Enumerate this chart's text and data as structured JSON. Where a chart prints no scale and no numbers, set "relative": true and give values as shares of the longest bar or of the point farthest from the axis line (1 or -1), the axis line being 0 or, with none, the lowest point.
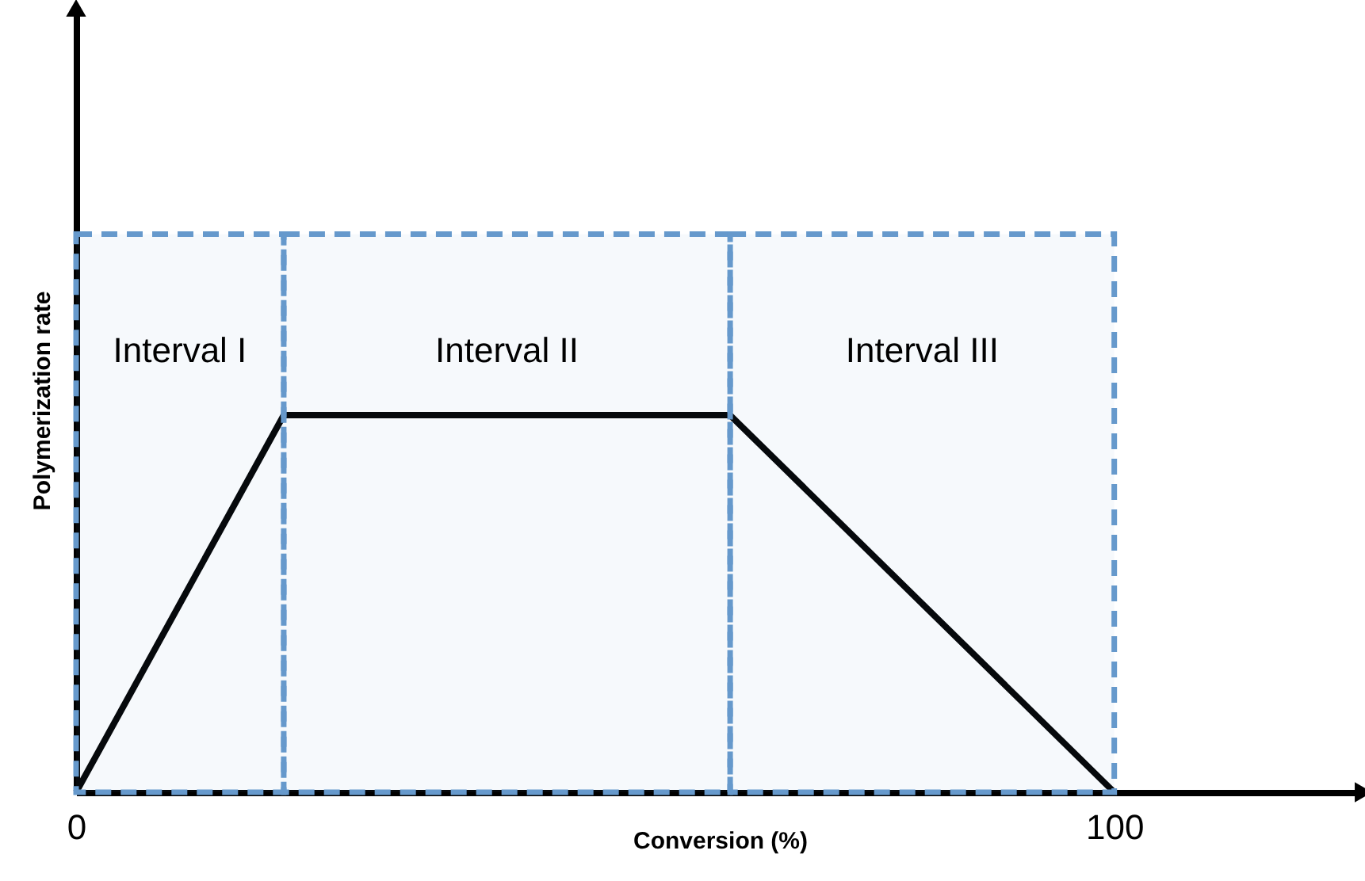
{
  "chart_data": {
    "type": "line",
    "relative": true,
    "xlabel": "Conversion (%)",
    "ylabel": "Polymerization rate",
    "x": [
      0,
      20,
      63,
      100
    ],
    "series": [
      {
        "color": "#000000",
        "values": [
          0,
          1,
          1,
          0
        ]
      }
    ],
    "xlim": [
      0,
      124
    ],
    "xticks": [
      0,
      100
    ],
    "marker": "none",
    "line_style": "solid",
    "bands": [
      {
        "axis": "x",
        "from": 0,
        "to": 20,
        "label": "Interval I",
        "color": "#6699cc"
      },
      {
        "axis": "x",
        "from": 20,
        "to": 63,
        "label": "Interval II",
        "color": "#6699cc"
      },
      {
        "axis": "x",
        "from": 63,
        "to": 100,
        "label": "Interval III",
        "color": "#6699cc"
      }
    ]
  }
}
